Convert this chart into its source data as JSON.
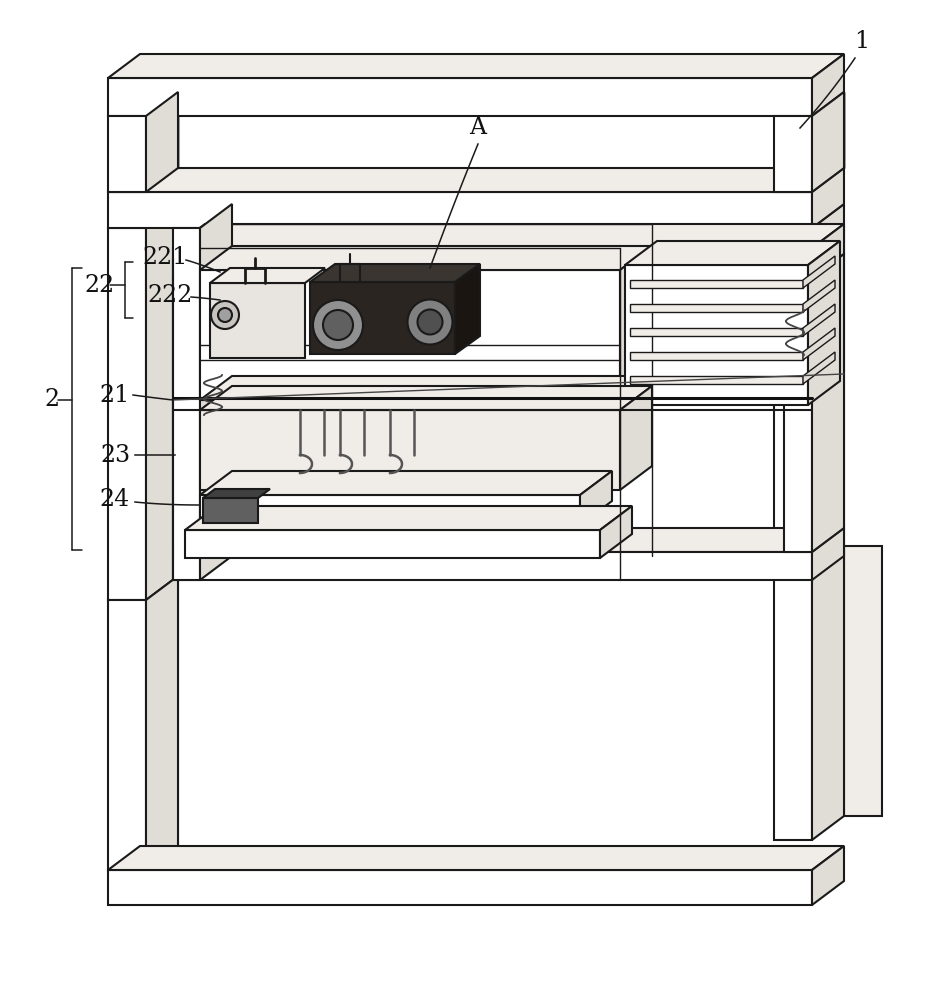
{
  "background_color": "#ffffff",
  "line_color": "#1a1a1a",
  "face_white": "#ffffff",
  "face_light": "#f0ede8",
  "face_mid": "#e0dcd6",
  "face_dark": "#c8c4be",
  "label_fontsize": 17,
  "figsize": [
    9.32,
    10.0
  ],
  "dpi": 100
}
